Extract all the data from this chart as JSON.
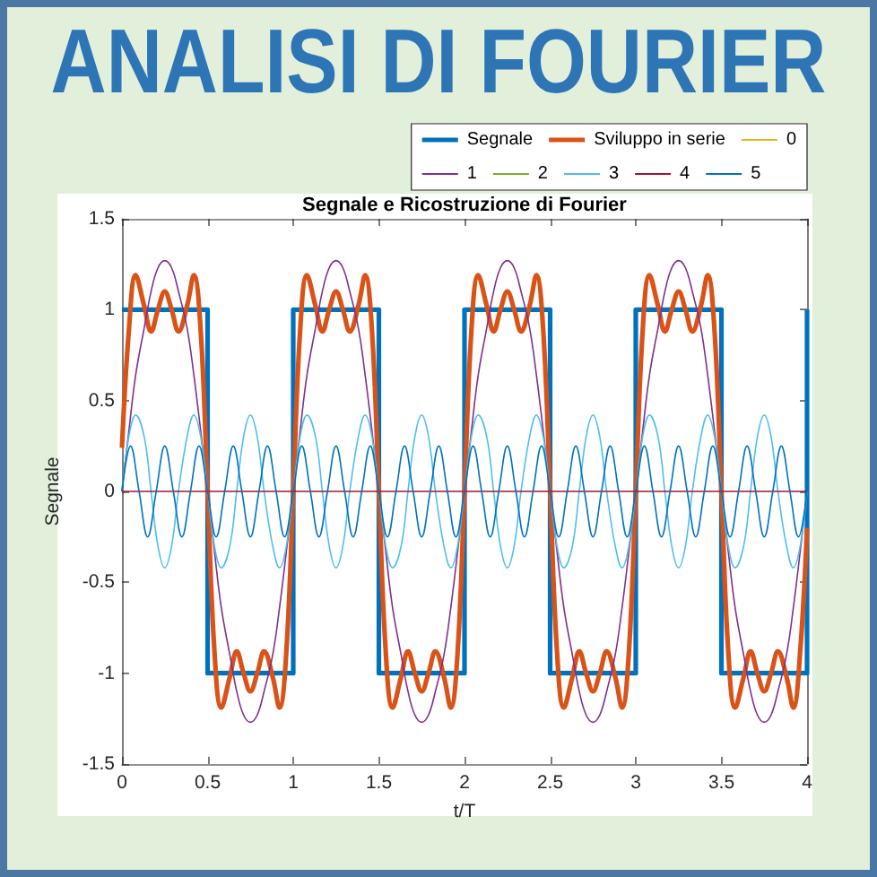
{
  "chart_data": {
    "type": "line",
    "title": "ANALISI DI FOURIER",
    "subtitle": "Segnale e Ricostruzione di Fourier",
    "xlabel": "t/T",
    "ylabel": "Segnale",
    "x": [
      0,
      0.04,
      0.08,
      0.13,
      0.17,
      0.21,
      0.25,
      0.29,
      0.33,
      0.38,
      0.42,
      0.46,
      0.5,
      0.54,
      0.58,
      0.63,
      0.67,
      0.71,
      0.75,
      0.79,
      0.83,
      0.88,
      0.92,
      0.96,
      1,
      1.04,
      1.08,
      1.13,
      1.17,
      1.21,
      1.25,
      1.29,
      1.33,
      1.38,
      1.42,
      1.46,
      1.5,
      1.54,
      1.58,
      1.63,
      1.67,
      1.71,
      1.75,
      1.79,
      1.83,
      1.88,
      1.92,
      1.96,
      2,
      2.04,
      2.08,
      2.13,
      2.17,
      2.21,
      2.25,
      2.29,
      2.33,
      2.38,
      2.42,
      2.46,
      2.5,
      2.54,
      2.58,
      2.63,
      2.67,
      2.71,
      2.75,
      2.79,
      2.83,
      2.88,
      2.92,
      2.96,
      3,
      3.04,
      3.08,
      3.13,
      3.17,
      3.21,
      3.25,
      3.29,
      3.33,
      3.38,
      3.42,
      3.46,
      3.5,
      3.54,
      3.58,
      3.63,
      3.67,
      3.71,
      3.75,
      3.79,
      3.83,
      3.88,
      3.92,
      3.96,
      4
    ],
    "series": [
      {
        "name": "Segnale",
        "type": "step",
        "color": "#0072bd",
        "x": [
          0,
          0.5,
          1,
          1.5,
          2,
          2.5,
          3,
          3.5,
          4
        ],
        "values": [
          1,
          -1,
          1,
          -1,
          1,
          -1,
          1,
          -1,
          1
        ]
      },
      {
        "name": "Sviluppo in serie",
        "color": "#d95319",
        "values": [
          0.24,
          0.88,
          1.19,
          1.02,
          0.88,
          1,
          1.1,
          1,
          0.88,
          1.02,
          1.19,
          0.88,
          0,
          -0.88,
          -1.19,
          -1.02,
          -0.88,
          -1,
          -1.1,
          -1,
          -0.88,
          -1.02,
          -1.19,
          -0.88,
          0,
          0.88,
          1.19,
          1.02,
          0.88,
          1,
          1.1,
          1,
          0.88,
          1.02,
          1.19,
          0.88,
          0,
          -0.88,
          -1.19,
          -1.02,
          -0.88,
          -1,
          -1.1,
          -1,
          -0.88,
          -1.02,
          -1.19,
          -0.88,
          0,
          0.88,
          1.19,
          1.02,
          0.88,
          1,
          1.1,
          1,
          0.88,
          1.02,
          1.19,
          0.88,
          0,
          -0.88,
          -1.19,
          -1.02,
          -0.88,
          -1,
          -1.1,
          -1,
          -0.88,
          -1.02,
          -1.19,
          -0.88,
          0,
          0.88,
          1.19,
          1.02,
          0.88,
          1,
          1.1,
          1,
          0.88,
          1.02,
          1.19,
          0.88,
          0,
          -0.88,
          -1.19,
          -1.02,
          -0.88,
          -1,
          -1.1,
          -1,
          -0.88,
          -1.02,
          -1.19,
          -0.88,
          -0.2
        ]
      },
      {
        "name": "0",
        "color": "#edb120",
        "values": [
          null,
          null,
          null,
          null,
          null,
          null,
          null,
          null,
          null,
          null,
          null,
          null,
          null,
          null,
          null,
          null,
          null,
          null,
          null,
          null,
          null,
          null,
          null,
          null,
          null,
          null,
          null,
          null,
          null,
          null,
          null,
          null,
          null,
          null,
          null,
          null,
          null,
          null,
          null,
          null,
          null,
          null,
          null,
          null,
          null,
          null,
          null,
          null,
          null,
          null,
          null,
          null,
          null,
          null,
          null,
          null,
          null,
          null,
          null,
          null,
          null,
          null,
          null,
          null,
          null,
          null,
          null,
          null,
          null,
          null,
          null,
          null,
          null,
          null,
          null,
          null,
          null,
          null,
          null,
          null,
          null,
          null,
          null,
          null,
          null,
          null,
          null,
          null,
          null,
          null,
          null,
          null,
          null,
          null,
          null,
          null,
          null
        ]
      },
      {
        "name": "1",
        "color": "#7e2f8e",
        "values": [
          0,
          0.33,
          0.64,
          0.9,
          1.1,
          1.23,
          1.27,
          1.23,
          1.1,
          0.9,
          0.64,
          0.33,
          0,
          -0.33,
          -0.64,
          -0.9,
          -1.1,
          -1.23,
          -1.27,
          -1.23,
          -1.1,
          -0.9,
          -0.64,
          -0.33,
          0,
          0.33,
          0.64,
          0.9,
          1.1,
          1.23,
          1.27,
          1.23,
          1.1,
          0.9,
          0.64,
          0.33,
          0,
          -0.33,
          -0.64,
          -0.9,
          -1.1,
          -1.23,
          -1.27,
          -1.23,
          -1.1,
          -0.9,
          -0.64,
          -0.33,
          0,
          0.33,
          0.64,
          0.9,
          1.1,
          1.23,
          1.27,
          1.23,
          1.1,
          0.9,
          0.64,
          0.33,
          0,
          -0.33,
          -0.64,
          -0.9,
          -1.1,
          -1.23,
          -1.27,
          -1.23,
          -1.1,
          -0.9,
          -0.64,
          -0.33,
          0,
          0.33,
          0.64,
          0.9,
          1.1,
          1.23,
          1.27,
          1.23,
          1.1,
          0.9,
          0.64,
          0.33,
          0,
          -0.33,
          -0.64,
          -0.9,
          -1.1,
          -1.23,
          -1.27,
          -1.23,
          -1.1,
          -0.9,
          -0.64,
          -0.33,
          0
        ]
      },
      {
        "name": "2",
        "color": "#77ac30",
        "values": [
          null,
          null,
          null,
          null,
          null,
          null,
          null,
          null,
          null,
          null,
          null,
          null,
          null,
          null,
          null,
          null,
          null,
          null,
          null,
          null,
          null,
          null,
          null,
          null,
          null,
          null,
          null,
          null,
          null,
          null,
          null,
          null,
          null,
          null,
          null,
          null,
          null,
          null,
          null,
          null,
          null,
          null,
          null,
          null,
          null,
          null,
          null,
          null,
          null,
          null,
          null,
          null,
          null,
          null,
          null,
          null,
          null,
          null,
          null,
          null,
          null,
          null,
          null,
          null,
          null,
          null,
          null,
          null,
          null,
          null,
          null,
          null,
          null,
          null,
          null,
          null,
          null,
          null,
          null,
          null,
          null,
          null,
          null,
          null,
          null,
          null,
          null,
          null,
          null,
          null,
          null,
          null,
          null,
          null,
          null,
          null,
          null
        ]
      },
      {
        "name": "3",
        "color": "#4dbeee",
        "values": [
          0,
          0.3,
          0.42,
          0.3,
          0,
          -0.3,
          -0.42,
          -0.3,
          0,
          0.3,
          0.42,
          0.3,
          0,
          -0.3,
          -0.42,
          -0.3,
          0,
          0.3,
          0.42,
          0.3,
          0,
          -0.3,
          -0.42,
          -0.3,
          0,
          0.3,
          0.42,
          0.3,
          0,
          -0.3,
          -0.42,
          -0.3,
          0,
          0.3,
          0.42,
          0.3,
          0,
          -0.3,
          -0.42,
          -0.3,
          0,
          0.3,
          0.42,
          0.3,
          0,
          -0.3,
          -0.42,
          -0.3,
          0,
          0.3,
          0.42,
          0.3,
          0,
          -0.3,
          -0.42,
          -0.3,
          0,
          0.3,
          0.42,
          0.3,
          0,
          -0.3,
          -0.42,
          -0.3,
          0,
          0.3,
          0.42,
          0.3,
          0,
          -0.3,
          -0.42,
          -0.3,
          0,
          0.3,
          0.42,
          0.3,
          0,
          -0.3,
          -0.42,
          -0.3,
          0,
          0.3,
          0.42,
          0.3,
          0,
          -0.3,
          -0.42,
          -0.3,
          0,
          0.3,
          0.42,
          0.3,
          0,
          -0.3,
          -0.42,
          -0.3,
          0
        ]
      },
      {
        "name": "4",
        "color": "#a2142f",
        "x": [
          0,
          4
        ],
        "values": [
          0,
          0
        ]
      },
      {
        "name": "5",
        "color": "#0072bd",
        "x": [
          0,
          0.05,
          0.1,
          0.15,
          0.2,
          0.25,
          0.3,
          0.35,
          0.4,
          0.45,
          0.5,
          0.55,
          0.6,
          0.65,
          0.7,
          0.75,
          0.8,
          0.85,
          0.9,
          0.95,
          1,
          1.05,
          1.1,
          1.15,
          1.2,
          1.25,
          1.3,
          1.35,
          1.4,
          1.45,
          1.5,
          1.55,
          1.6,
          1.65,
          1.7,
          1.75,
          1.8,
          1.85,
          1.9,
          1.95,
          2,
          2.05,
          2.1,
          2.15,
          2.2,
          2.25,
          2.3,
          2.35,
          2.4,
          2.45,
          2.5,
          2.55,
          2.6,
          2.65,
          2.7,
          2.75,
          2.8,
          2.85,
          2.9,
          2.95,
          3,
          3.05,
          3.1,
          3.15,
          3.2,
          3.25,
          3.3,
          3.35,
          3.4,
          3.45,
          3.5,
          3.55,
          3.6,
          3.65,
          3.7,
          3.75,
          3.8,
          3.85,
          3.9,
          3.95,
          4
        ],
        "values": [
          0,
          0.25,
          0,
          -0.25,
          0,
          0.25,
          0,
          -0.25,
          0,
          0.25,
          0,
          -0.25,
          0,
          0.25,
          0,
          -0.25,
          0,
          0.25,
          0,
          -0.25,
          0,
          0.25,
          0,
          -0.25,
          0,
          0.25,
          0,
          -0.25,
          0,
          0.25,
          0,
          -0.25,
          0,
          0.25,
          0,
          -0.25,
          0,
          0.25,
          0,
          -0.25,
          0,
          0.25,
          0,
          -0.25,
          0,
          0.25,
          0,
          -0.25,
          0,
          0.25,
          0,
          -0.25,
          0,
          0.25,
          0,
          -0.25,
          0,
          0.25,
          0,
          -0.25,
          0,
          0.25,
          0,
          -0.25,
          0,
          0.25,
          0,
          -0.25,
          0,
          0.25,
          0,
          -0.25,
          0,
          0.25,
          0,
          -0.25,
          0,
          0.25,
          0,
          -0.25,
          0
        ]
      }
    ],
    "xlim": [
      0,
      4
    ],
    "ylim": [
      -1.5,
      1.5
    ],
    "xticks": [
      0,
      0.5,
      1,
      1.5,
      2,
      2.5,
      3,
      3.5,
      4
    ],
    "yticks": [
      -1.5,
      -1,
      -0.5,
      0,
      0.5,
      1,
      1.5
    ],
    "legend": "top right"
  }
}
